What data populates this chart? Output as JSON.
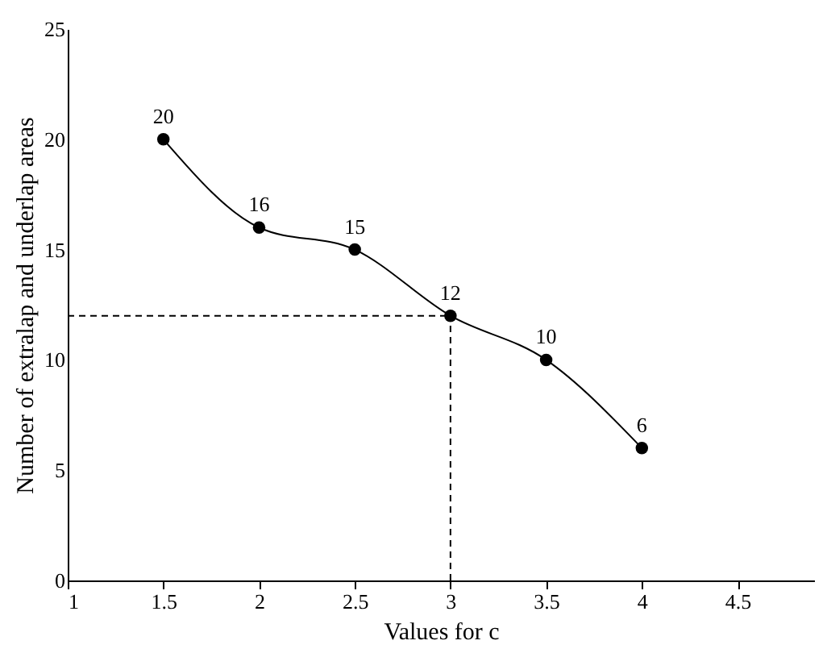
{
  "chart_data": {
    "type": "line",
    "xlabel": "Values for c",
    "ylabel": "Number of extralap and underlap areas",
    "x": [
      1.5,
      2,
      2.5,
      3,
      3.5,
      4
    ],
    "series": [
      {
        "color": "#000000",
        "values": [
          20,
          16,
          15,
          12,
          10,
          6
        ]
      }
    ],
    "xlim": [
      1,
      4.9
    ],
    "xticks": [
      1,
      1.5,
      2,
      2.5,
      3,
      3.5,
      4,
      4.5
    ],
    "ylim": [
      0,
      25
    ],
    "yticks": [
      0,
      5,
      10,
      15,
      20,
      25
    ],
    "ref_lines": [
      {
        "axis": "x",
        "value": 3,
        "line_style": "dashed"
      },
      {
        "axis": "y",
        "value": 12,
        "line_style": "dashed"
      }
    ],
    "data_labels": true,
    "marker": "circle",
    "line_style": "solid",
    "grid": false
  }
}
